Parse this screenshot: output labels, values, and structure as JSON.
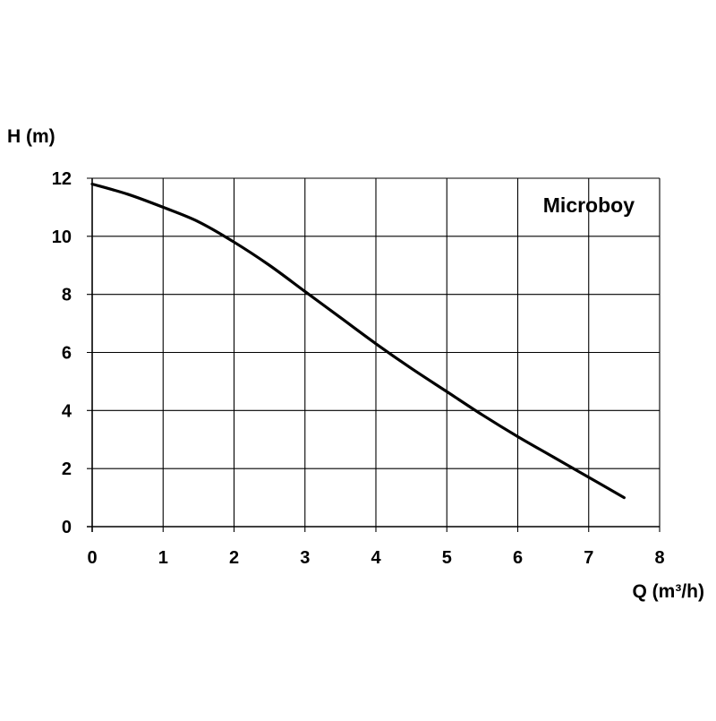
{
  "chart_data": {
    "type": "line",
    "title": "",
    "xlabel": "Q (m³/h)",
    "ylabel": "H (m)",
    "xlim": [
      0,
      8
    ],
    "ylim": [
      0,
      12
    ],
    "x_ticks": [
      "0",
      "1",
      "2",
      "3",
      "4",
      "5",
      "6",
      "7",
      "8"
    ],
    "y_ticks": [
      "0",
      "2",
      "4",
      "6",
      "8",
      "10",
      "12"
    ],
    "grid": true,
    "annotation": "Microboy",
    "series": [
      {
        "x": [
          0,
          0.5,
          1,
          1.5,
          2,
          2.5,
          3,
          3.5,
          4,
          4.5,
          5,
          5.5,
          6,
          6.5,
          7,
          7.5
        ],
        "y": [
          11.8,
          11.45,
          11.0,
          10.5,
          9.8,
          9.0,
          8.1,
          7.2,
          6.3,
          5.45,
          4.65,
          3.85,
          3.1,
          2.4,
          1.7,
          1.0
        ],
        "color": "#000000"
      }
    ]
  }
}
